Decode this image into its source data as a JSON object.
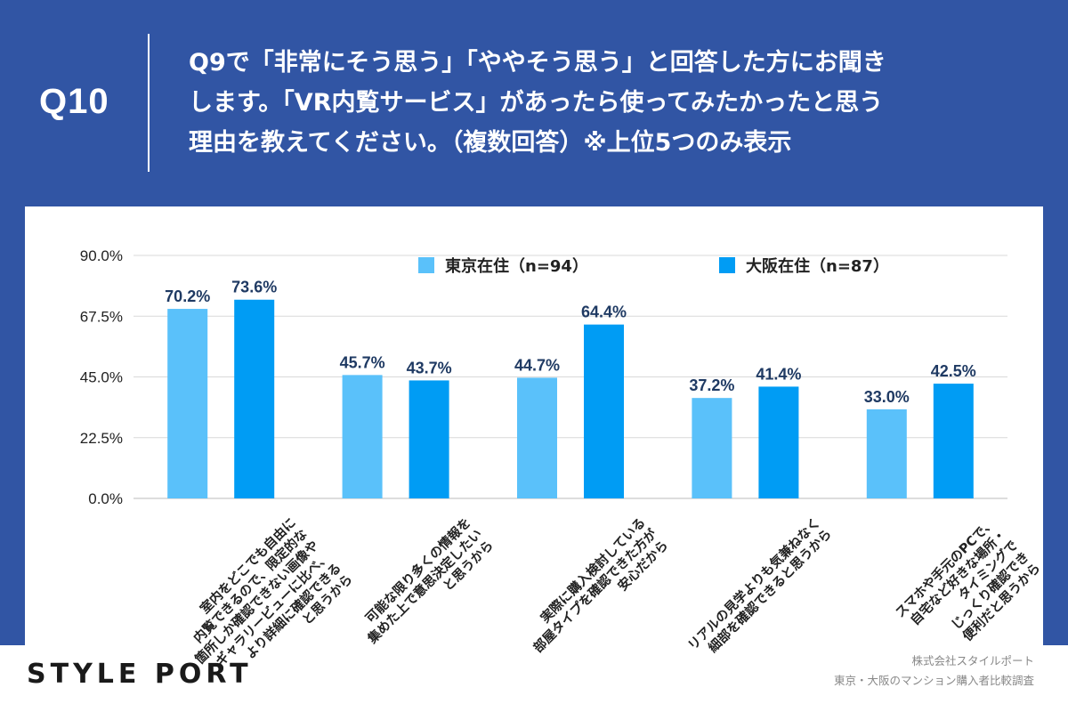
{
  "header": {
    "q_number": "Q10",
    "question_lines": [
      "Q9で「非常にそう思う」「ややそう思う」と回答した方にお聞き",
      "します。「VR内覧サービス」があったら使ってみたかったと思う",
      "理由を教えてください。（複数回答）※上位5つのみ表示"
    ]
  },
  "colors": {
    "frame": "#3155a4",
    "tokyo": "#5ac1fa",
    "osaka": "#009cf4",
    "label": "#1f3a63"
  },
  "chart_data": {
    "type": "bar",
    "title": "",
    "xlabel": "",
    "ylabel": "",
    "ylim": [
      0,
      90
    ],
    "yticks": [
      0,
      22.5,
      45,
      67.5,
      90
    ],
    "ytick_labels": [
      "0.0%",
      "22.5%",
      "45.0%",
      "67.5%",
      "90.0%"
    ],
    "grid": true,
    "legend_position": "top-right",
    "categories": [
      "室内をどこでも自由に内覧できるので、限定的な箇所しか確認できない画像やギャラリービューに比べ、より詳細に確認できると思うから",
      "可能な限り多くの情報を集めた上で意思決定したいと思うから",
      "実際に購入検討している部屋タイプを確認できた方が安心だから",
      "リアルの見学よりも気兼ねなく細部を確認できると思うから",
      "スマホや手元のPCで、自宅など好きな場所・タイミングでじっくり確認できて便利だと思うから"
    ],
    "category_lines": [
      [
        "室内をどこでも自由に",
        "内覧できるので、限定的な",
        "箇所しか確認できない画像や",
        "ギャラリービューに比べ、",
        "より詳細に確認できる",
        "と思うから"
      ],
      [
        "可能な限り多くの情報を",
        "集めた上で意思決定したい",
        "と思うから"
      ],
      [
        "実際に購入検討している",
        "部屋タイプを確認できた方が",
        "安心だから"
      ],
      [
        "リアルの見学よりも気兼ねなく",
        "細部を確認できると思うから"
      ],
      [
        "スマホや手元のPCで、",
        "自宅など好きな場所・",
        "タイミングで",
        "じっくり確認でき",
        "便利だと思うから"
      ]
    ],
    "series": [
      {
        "name": "東京在住（n=94）",
        "values": [
          70.2,
          45.7,
          44.7,
          37.2,
          33.0
        ],
        "labels": [
          "70.2%",
          "45.7%",
          "44.7%",
          "37.2%",
          "33.0%"
        ]
      },
      {
        "name": "大阪在住（n=87）",
        "values": [
          73.6,
          43.7,
          64.4,
          41.4,
          42.5
        ],
        "labels": [
          "73.6%",
          "43.7%",
          "64.4%",
          "41.4%",
          "42.5%"
        ]
      }
    ]
  },
  "footer": {
    "logo_text": "STYLE PORT",
    "credit_lines": [
      "株式会社スタイルポート",
      "東京・大阪のマンション購入者比較調査"
    ]
  }
}
